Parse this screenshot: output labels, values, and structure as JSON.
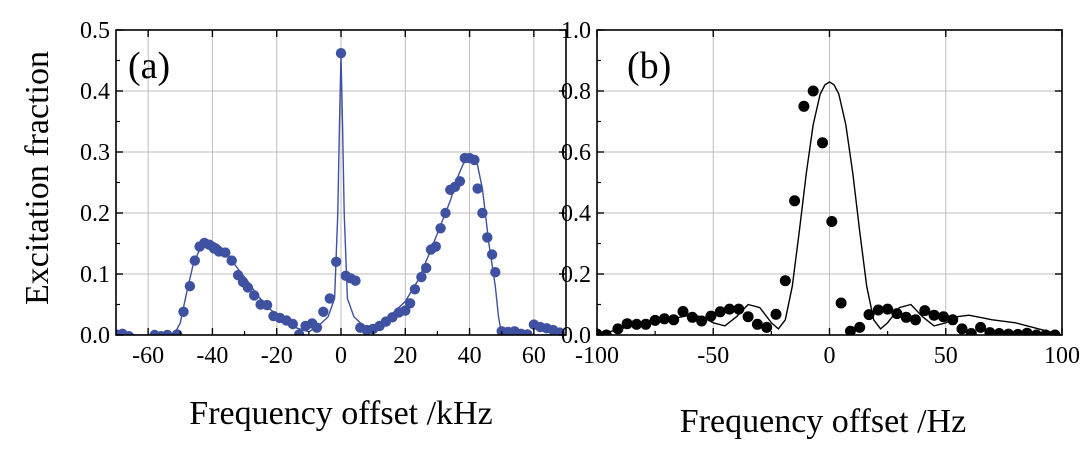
{
  "figure": {
    "ylabel": "Excitation fraction"
  },
  "chart_data": [
    {
      "type": "scatter",
      "panel_label": "(a)",
      "xlabel": "Frequency offset /kHz",
      "ylabel": "Excitation fraction",
      "xlim": [
        -70,
        70
      ],
      "ylim": [
        0,
        0.5
      ],
      "xticks": [
        -60,
        -40,
        -20,
        0,
        20,
        40,
        60
      ],
      "xtick_labels": [
        "-60",
        "-40",
        "-20",
        "0",
        "20",
        "40",
        "60"
      ],
      "yticks": [
        0.0,
        0.1,
        0.2,
        0.3,
        0.4,
        0.5
      ],
      "ytick_labels": [
        "0.0",
        "0.1",
        "0.2",
        "0.3",
        "0.4",
        "0.5"
      ],
      "grid": true,
      "marker_color": "#3f51a1",
      "line_color": "#3f51a1",
      "series": [
        {
          "kind": "points",
          "x": [
            -70,
            -68,
            -66,
            -58,
            -56,
            -54,
            -51,
            -49,
            -47,
            -45.5,
            -44,
            -42.5,
            -41,
            -39.5,
            -38,
            -36,
            -34,
            -32,
            -30.5,
            -29,
            -27,
            -25,
            -23,
            -21,
            -19,
            -17,
            -15,
            -13,
            -11,
            -9,
            -7.5,
            -5.5,
            -3.5,
            -1.5,
            0,
            1.5,
            3,
            4.5,
            6,
            8,
            10,
            12,
            14,
            16,
            18,
            20,
            21.5,
            23,
            25,
            26.5,
            28,
            29.5,
            31,
            32.5,
            34,
            35.5,
            37,
            38.5,
            40,
            41.5,
            42.5,
            44,
            45.5,
            47,
            48,
            50,
            52,
            54,
            56,
            58,
            60,
            62,
            64,
            66,
            68
          ],
          "y": [
            0.001,
            0.002,
            -0.002,
            0.0,
            -0.002,
            0.0,
            0.001,
            0.038,
            0.08,
            0.122,
            0.145,
            0.151,
            0.148,
            0.142,
            0.137,
            0.135,
            0.122,
            0.098,
            0.087,
            0.078,
            0.065,
            0.05,
            0.049,
            0.031,
            0.028,
            0.024,
            0.018,
            0.001,
            0.015,
            0.019,
            0.012,
            0.038,
            0.06,
            0.12,
            0.462,
            0.097,
            0.093,
            0.089,
            0.012,
            0.008,
            0.01,
            0.015,
            0.022,
            0.029,
            0.037,
            0.04,
            0.052,
            0.075,
            0.095,
            0.11,
            0.14,
            0.145,
            0.175,
            0.2,
            0.238,
            0.243,
            0.252,
            0.29,
            0.29,
            0.287,
            0.24,
            0.2,
            0.16,
            0.132,
            0.103,
            0.006,
            0.005,
            0.006,
            0.002,
            0.001,
            0.017,
            0.013,
            0.011,
            0.008,
            0.004
          ]
        },
        {
          "kind": "curve",
          "x": [
            -70,
            -60,
            -52,
            -50,
            -48,
            -46,
            -44,
            -42,
            -40,
            -38,
            -35,
            -32,
            -29,
            -26,
            -22,
            -18,
            -14,
            -10,
            -7,
            -4,
            -2,
            -1,
            -0.5,
            0,
            0.5,
            1,
            2,
            4,
            7,
            10,
            13,
            16,
            20,
            24,
            28,
            31,
            34,
            36,
            38,
            40,
            42,
            44,
            46,
            48,
            49,
            50,
            52,
            60,
            70
          ],
          "y": [
            0.0,
            0.0,
            0.0,
            0.02,
            0.07,
            0.115,
            0.14,
            0.152,
            0.153,
            0.147,
            0.13,
            0.108,
            0.088,
            0.065,
            0.042,
            0.025,
            0.012,
            0.005,
            0.015,
            0.03,
            0.06,
            0.2,
            0.34,
            0.46,
            0.34,
            0.2,
            0.06,
            0.03,
            0.015,
            0.012,
            0.022,
            0.035,
            0.055,
            0.09,
            0.14,
            0.18,
            0.22,
            0.255,
            0.28,
            0.297,
            0.29,
            0.24,
            0.15,
            0.08,
            0.03,
            0.0,
            0.0,
            0.0,
            0.0
          ]
        }
      ]
    },
    {
      "type": "scatter",
      "panel_label": "(b)",
      "xlabel": "Frequency offset /Hz",
      "ylabel": "Excitation fraction",
      "xlim": [
        -100,
        100
      ],
      "ylim": [
        0,
        1.0
      ],
      "xticks": [
        -100,
        -50,
        0,
        50,
        100
      ],
      "xtick_labels": [
        "-100",
        "-50",
        "0",
        "50",
        "100"
      ],
      "yticks": [
        0.0,
        0.2,
        0.4,
        0.6,
        0.8,
        1.0
      ],
      "ytick_labels": [
        "0.0",
        "0.2",
        "0.4",
        "0.6",
        "0.8",
        "1.0"
      ],
      "grid": true,
      "marker_color": "#000000",
      "line_color": "#000000",
      "series": [
        {
          "kind": "points",
          "x": [
            -100,
            -96,
            -91,
            -87,
            -83,
            -79,
            -75,
            -71,
            -67,
            -63,
            -59,
            -55,
            -51,
            -47,
            -43,
            -39,
            -35,
            -31,
            -27,
            -23,
            -19,
            -15,
            -11,
            -7,
            -3,
            1,
            5,
            9,
            13,
            17,
            21,
            25,
            29,
            33,
            37,
            41,
            45,
            49,
            53,
            57,
            61,
            65,
            69,
            73,
            77,
            81,
            85,
            89,
            93,
            97
          ],
          "y": [
            0.003,
            0.0,
            0.02,
            0.037,
            0.035,
            0.035,
            0.048,
            0.053,
            0.05,
            0.077,
            0.058,
            0.046,
            0.062,
            0.076,
            0.085,
            0.085,
            0.06,
            0.035,
            0.025,
            0.068,
            0.178,
            0.44,
            0.75,
            0.8,
            0.63,
            0.372,
            0.105,
            0.012,
            0.025,
            0.067,
            0.082,
            0.085,
            0.07,
            0.058,
            0.05,
            0.08,
            0.065,
            0.06,
            0.05,
            0.02,
            0.005,
            0.025,
            0.008,
            0.005,
            0.003,
            0.002,
            0.006,
            0.0,
            0.0,
            0.0
          ],
          "note_skip": true
        },
        {
          "kind": "curve",
          "x": [
            -100,
            -90,
            -80,
            -70,
            -60,
            -55,
            -50,
            -45,
            -40,
            -35,
            -30,
            -25,
            -22,
            -19,
            -16,
            -13,
            -10,
            -7,
            -4,
            -2,
            0,
            2,
            4,
            7,
            10,
            13,
            16,
            19,
            22,
            25,
            30,
            35,
            40,
            45,
            50,
            55,
            60,
            70,
            80,
            90,
            100
          ],
          "y": [
            0.0,
            0.02,
            0.04,
            0.05,
            0.065,
            0.06,
            0.04,
            0.03,
            0.06,
            0.1,
            0.09,
            0.04,
            0.02,
            0.05,
            0.16,
            0.34,
            0.53,
            0.69,
            0.79,
            0.82,
            0.83,
            0.82,
            0.79,
            0.69,
            0.53,
            0.34,
            0.16,
            0.05,
            0.02,
            0.04,
            0.09,
            0.1,
            0.06,
            0.03,
            0.04,
            0.06,
            0.065,
            0.05,
            0.04,
            0.02,
            0.0
          ]
        }
      ]
    }
  ]
}
